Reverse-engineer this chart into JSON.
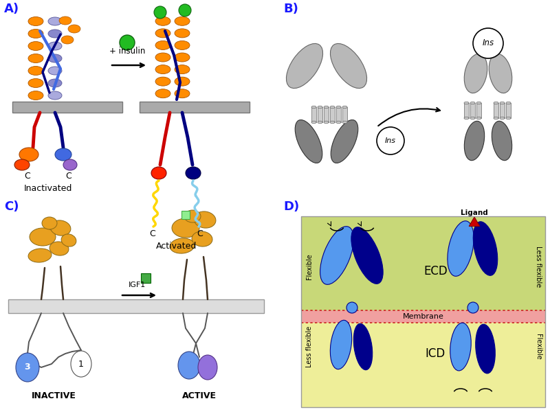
{
  "fig_width": 8.0,
  "fig_height": 6.0,
  "bg_color": "#ffffff",
  "panel_labels": [
    "A)",
    "B)",
    "C)",
    "D)"
  ],
  "panel_label_fontsize": 13,
  "panel_label_color": "#1a1aff",
  "panelA": {
    "inactivated_label": "Inactivated",
    "activated_label": "Activated",
    "insulin_label": "+ insulin",
    "orange_color": "#FF8C00",
    "blue_color": "#4169E1",
    "purple_color": "#9370DB",
    "membrane_color": "#A0A0A0",
    "red_color": "#CC0000",
    "cyan_color": "#87CEEB",
    "yellow_color": "#FFD700",
    "green_ball_color": "#22BB22",
    "dark_blue": "#000080"
  },
  "panelB": {
    "ins_label": "Ins",
    "gray_color": "#808080",
    "light_gray": "#B8B8B8"
  },
  "panelC": {
    "inactive_label": "INACTIVE",
    "active_label": "ACTIVE",
    "igf1_label": "IGF1",
    "gold_color": "#E8A020",
    "blue_color": "#6495ED",
    "membrane_color": "#DDDDDD",
    "purple_color": "#9370DB",
    "green_color": "#44AA44"
  },
  "panelD": {
    "ecd_label": "ECD",
    "icd_label": "ICD",
    "membrane_label": "Membrane",
    "ligand_label": "Ligand",
    "dark_blue": "#00008B",
    "mid_blue": "#1E5FCC",
    "light_blue": "#5599EE",
    "red_color": "#CC0000",
    "bg_green_top": "#C8D878",
    "bg_yellow_bot": "#EEEE99",
    "membrane_pink": "#F0A0A0",
    "membrane_red": "#CC2222"
  }
}
